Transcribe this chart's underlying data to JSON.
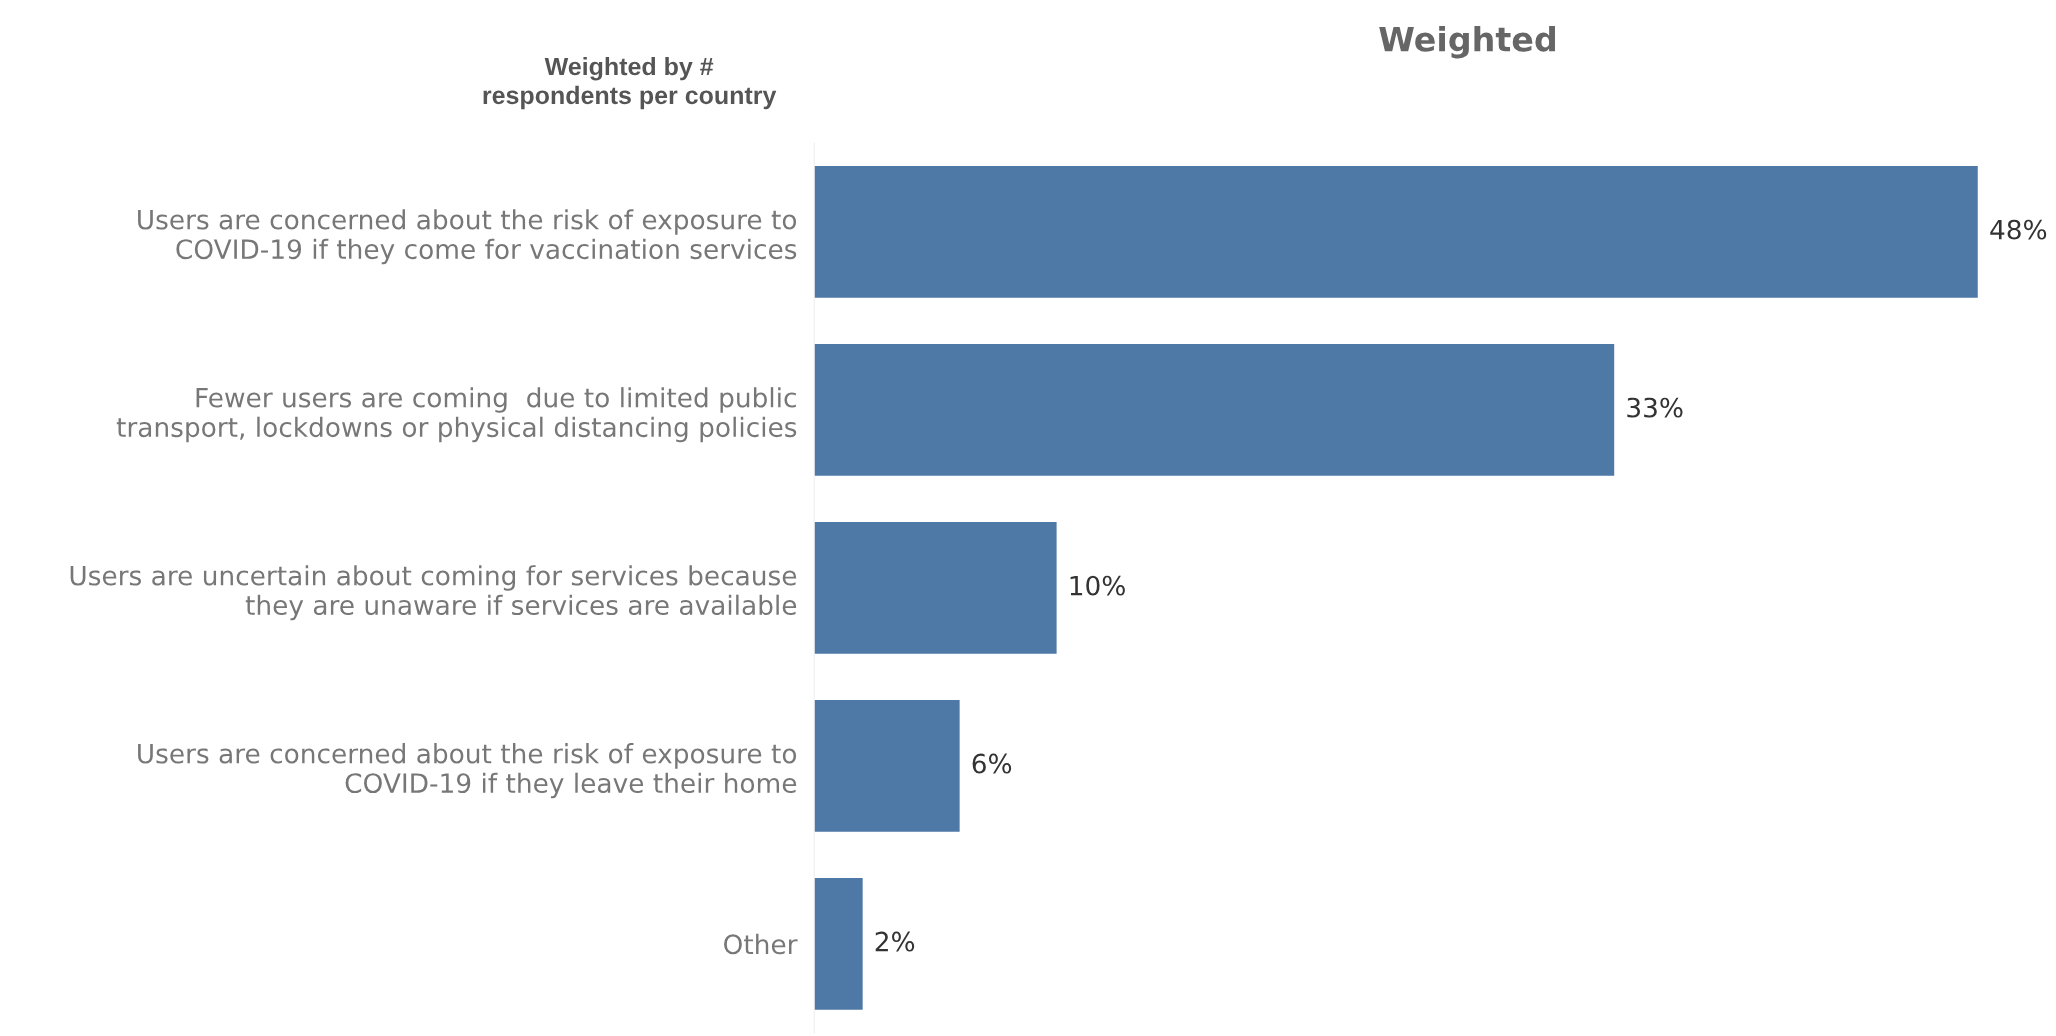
{
  "chart_data": {
    "type": "bar",
    "orientation": "horizontal",
    "title": "Weighted",
    "ylabel": "Weighted by #\nrespondents per country",
    "categories": [
      "Users are concerned about the risk of exposure to\nCOVID-19 if they come for vaccination services",
      "Fewer users are coming  due to limited public\ntransport, lockdowns or physical distancing policies",
      "Users are uncertain about coming for services because\nthey are unaware if services are available",
      "Users are concerned about the risk of exposure to\nCOVID-19 if they leave their home",
      "Other"
    ],
    "values": [
      48,
      33,
      10,
      6,
      2
    ],
    "value_labels": [
      "48%",
      "33%",
      "10%",
      "6%",
      "2%"
    ],
    "color": "#4e79a7",
    "grid": false,
    "legend": false
  }
}
